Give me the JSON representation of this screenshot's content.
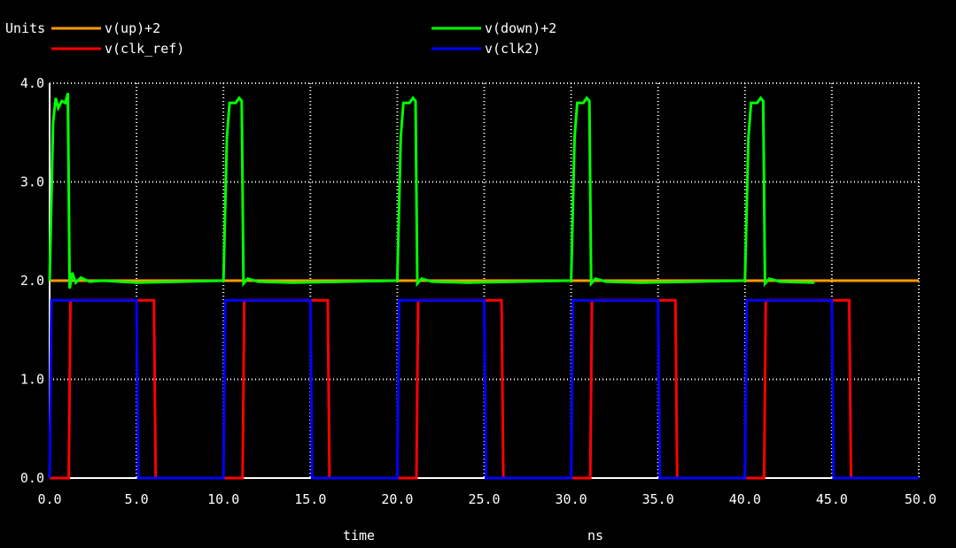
{
  "chart_data": {
    "type": "line",
    "ylabel": "Units",
    "xlabel": "time",
    "xunit": "ns",
    "xlim": [
      0,
      50
    ],
    "ylim": [
      0,
      4
    ],
    "grid": true,
    "legend_position": "top",
    "x_ticks": [
      "0.0",
      "5.0",
      "10.0",
      "15.0",
      "20.0",
      "25.0",
      "30.0",
      "35.0",
      "40.0",
      "45.0",
      "50.0"
    ],
    "y_ticks": [
      "0.0",
      "1.0",
      "2.0",
      "3.0",
      "4.0"
    ],
    "series": [
      {
        "name": "v(up)+2",
        "color": "#ff9b00",
        "points": [
          [
            0,
            2.0
          ],
          [
            50,
            2.0
          ]
        ]
      },
      {
        "name": "v(clk_ref)",
        "color": "#ff0000",
        "points": [
          [
            0,
            0
          ],
          [
            1.1,
            0
          ],
          [
            1.2,
            1.8
          ],
          [
            6.0,
            1.8
          ],
          [
            6.1,
            0
          ],
          [
            11.1,
            0
          ],
          [
            11.2,
            1.8
          ],
          [
            16.0,
            1.8
          ],
          [
            16.1,
            0
          ],
          [
            21.1,
            0
          ],
          [
            21.2,
            1.8
          ],
          [
            26.0,
            1.8
          ],
          [
            26.1,
            0
          ],
          [
            31.1,
            0
          ],
          [
            31.2,
            1.8
          ],
          [
            36.0,
            1.8
          ],
          [
            36.1,
            0
          ],
          [
            41.1,
            0
          ],
          [
            41.2,
            1.8
          ],
          [
            46.0,
            1.8
          ],
          [
            46.1,
            0
          ],
          [
            50,
            0
          ]
        ]
      },
      {
        "name": "v(down)+2",
        "color": "#00ff00",
        "points": [
          [
            0,
            2.0
          ],
          [
            0.2,
            3.6
          ],
          [
            0.35,
            3.85
          ],
          [
            0.5,
            3.75
          ],
          [
            0.7,
            3.82
          ],
          [
            0.9,
            3.8
          ],
          [
            1.05,
            3.9
          ],
          [
            1.15,
            1.92
          ],
          [
            1.3,
            2.08
          ],
          [
            1.5,
            1.98
          ],
          [
            1.8,
            2.03
          ],
          [
            2.3,
            1.99
          ],
          [
            3.0,
            2.0
          ],
          [
            5.0,
            1.98
          ],
          [
            10,
            2.0
          ],
          [
            10.2,
            3.45
          ],
          [
            10.35,
            3.8
          ],
          [
            10.7,
            3.8
          ],
          [
            10.9,
            3.85
          ],
          [
            11.05,
            3.82
          ],
          [
            11.15,
            1.97
          ],
          [
            11.4,
            2.02
          ],
          [
            12.0,
            1.99
          ],
          [
            14.0,
            1.98
          ],
          [
            20,
            2.0
          ],
          [
            20.2,
            3.45
          ],
          [
            20.35,
            3.8
          ],
          [
            20.7,
            3.8
          ],
          [
            20.9,
            3.85
          ],
          [
            21.05,
            3.82
          ],
          [
            21.15,
            1.97
          ],
          [
            21.4,
            2.02
          ],
          [
            22.0,
            1.99
          ],
          [
            24.0,
            1.98
          ],
          [
            30,
            2.0
          ],
          [
            30.2,
            3.45
          ],
          [
            30.35,
            3.8
          ],
          [
            30.7,
            3.8
          ],
          [
            30.9,
            3.85
          ],
          [
            31.05,
            3.82
          ],
          [
            31.15,
            1.97
          ],
          [
            31.4,
            2.02
          ],
          [
            32.0,
            1.99
          ],
          [
            34.0,
            1.98
          ],
          [
            40,
            2.0
          ],
          [
            40.2,
            3.45
          ],
          [
            40.35,
            3.8
          ],
          [
            40.7,
            3.8
          ],
          [
            40.9,
            3.85
          ],
          [
            41.05,
            3.82
          ],
          [
            41.15,
            1.97
          ],
          [
            41.4,
            2.02
          ],
          [
            42.0,
            1.99
          ],
          [
            44.0,
            1.98
          ]
        ]
      },
      {
        "name": "v(clk2)",
        "color": "#0000ff",
        "points": [
          [
            0,
            0
          ],
          [
            0.1,
            1.8
          ],
          [
            5.0,
            1.8
          ],
          [
            5.1,
            0
          ],
          [
            10.0,
            0
          ],
          [
            10.1,
            1.8
          ],
          [
            15.0,
            1.8
          ],
          [
            15.1,
            0
          ],
          [
            20.0,
            0
          ],
          [
            20.1,
            1.8
          ],
          [
            25.0,
            1.8
          ],
          [
            25.1,
            0
          ],
          [
            30.0,
            0
          ],
          [
            30.1,
            1.8
          ],
          [
            35.0,
            1.8
          ],
          [
            35.1,
            0
          ],
          [
            40.0,
            0
          ],
          [
            40.1,
            1.8
          ],
          [
            45.0,
            1.8
          ],
          [
            45.1,
            0
          ],
          [
            50,
            0
          ]
        ]
      }
    ]
  }
}
